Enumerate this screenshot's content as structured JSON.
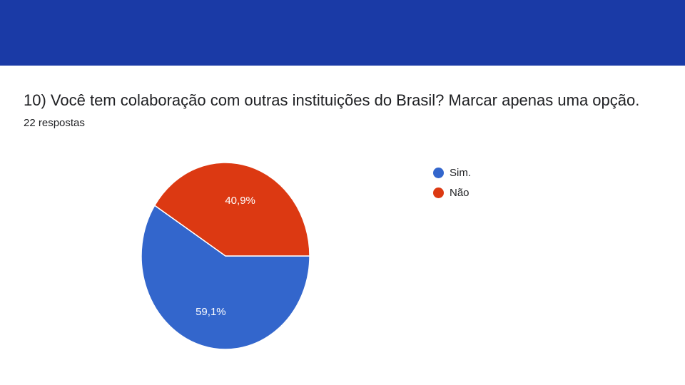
{
  "header": {
    "color": "#1a3aa6"
  },
  "question": {
    "title": "10) Você tem colaboração com outras instituições do Brasil?  Marcar apenas uma opção.",
    "responses": "22 respostas"
  },
  "chart_data": {
    "type": "pie",
    "categories": [
      "Sim.",
      "Não"
    ],
    "values": [
      59.1,
      40.9
    ],
    "labels": [
      "59,1%",
      "40,9%"
    ],
    "colors": [
      "#3366cc",
      "#dc3912"
    ],
    "title": "10) Você tem colaboração com outras instituições do Brasil?  Marcar apenas uma opção.",
    "legend_position": "right"
  },
  "legend": {
    "items": [
      {
        "label": "Sim.",
        "color": "#3366cc"
      },
      {
        "label": "Não",
        "color": "#dc3912"
      }
    ]
  }
}
